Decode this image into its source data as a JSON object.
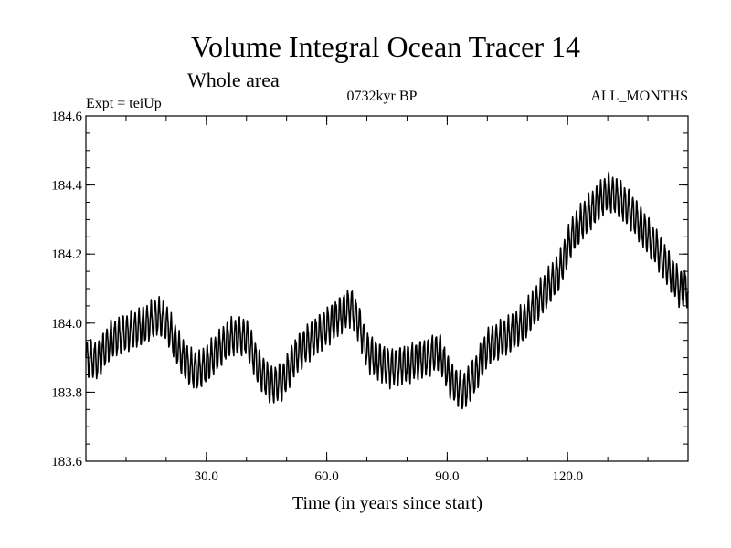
{
  "chart_data": {
    "type": "line",
    "title": "Volume Integral Ocean Tracer 14",
    "subtitle": "Whole area",
    "experiment_label": "Expt = teiUp",
    "period_label": "0732kyr BP",
    "months_label": "ALL_MONTHS",
    "xlabel": "Time (in years since start)",
    "ylabel": "",
    "xlim": [
      0,
      150
    ],
    "ylim": [
      183.6,
      184.6
    ],
    "x_ticks": [
      30,
      60,
      90,
      120
    ],
    "x_tick_labels": [
      "30.0",
      "60.0",
      "90.0",
      "120.0"
    ],
    "x_minor_step": 10,
    "y_ticks": [
      183.6,
      183.8,
      184.0,
      184.2,
      184.4,
      184.6
    ],
    "y_tick_labels": [
      "183.6",
      "183.8",
      "184.0",
      "184.2",
      "184.4",
      "184.6"
    ],
    "y_minor_step": 0.05,
    "grid": false,
    "series": [
      {
        "color": "#000000",
        "samples_per_year": 12,
        "seasonal_amplitude": 0.05,
        "trend_x": [
          0,
          3,
          6,
          10,
          14,
          18,
          20,
          22,
          24,
          26,
          28,
          30,
          33,
          36,
          40,
          43,
          46,
          49,
          52,
          55,
          58,
          61,
          64,
          66,
          68,
          70,
          73,
          76,
          79,
          82,
          85,
          88,
          91,
          94,
          97,
          100,
          103,
          106,
          109,
          112,
          115,
          118,
          121,
          124,
          127,
          130,
          133,
          136,
          139,
          142,
          145,
          148,
          150
        ],
        "trend_y": [
          183.9,
          183.89,
          183.95,
          183.97,
          183.99,
          184.02,
          184.0,
          183.95,
          183.9,
          183.87,
          183.86,
          183.88,
          183.92,
          183.96,
          183.96,
          183.87,
          183.82,
          183.83,
          183.9,
          183.94,
          183.97,
          184.0,
          184.03,
          184.05,
          184.0,
          183.92,
          183.89,
          183.87,
          183.88,
          183.89,
          183.9,
          183.92,
          183.83,
          183.8,
          183.85,
          183.93,
          183.95,
          183.97,
          184.0,
          184.05,
          184.1,
          184.15,
          184.25,
          184.3,
          184.34,
          184.38,
          184.36,
          184.32,
          184.27,
          184.22,
          184.16,
          184.1,
          184.1
        ]
      }
    ]
  }
}
